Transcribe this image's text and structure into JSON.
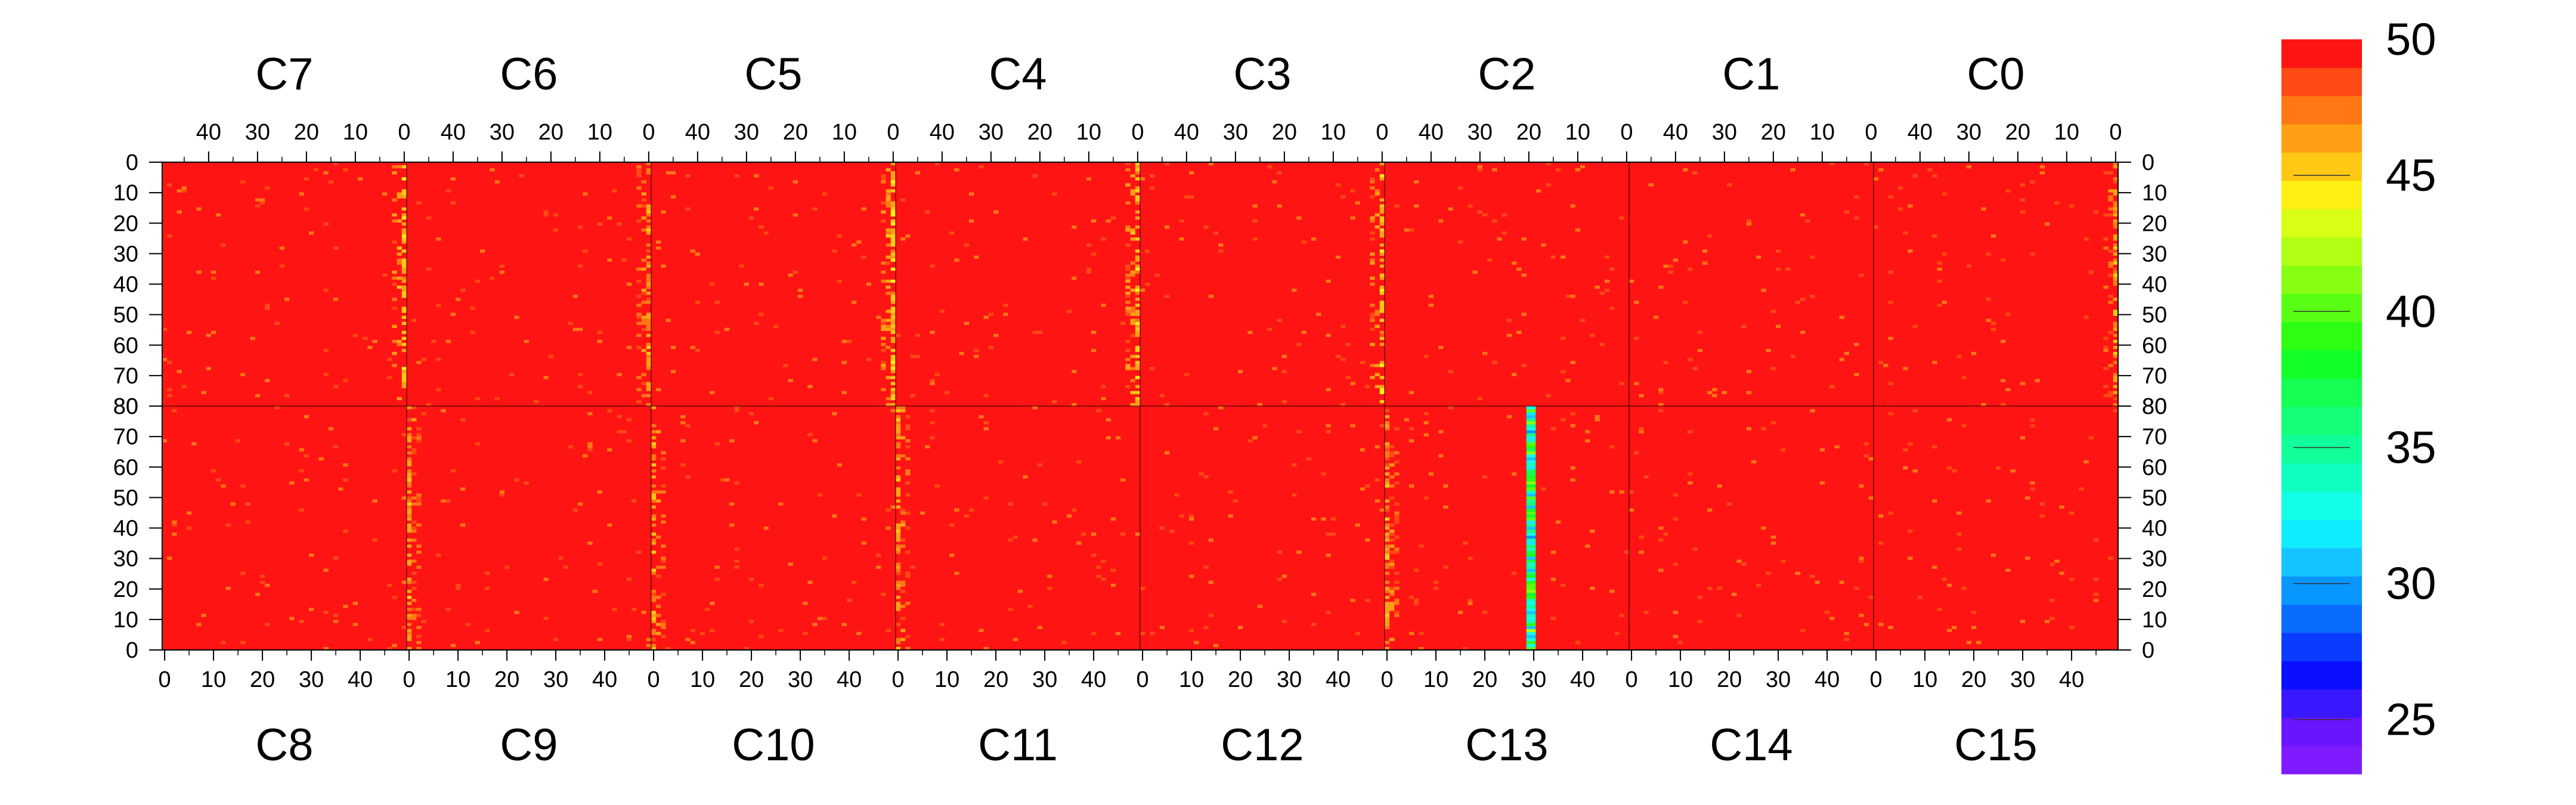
{
  "chart_data": {
    "type": "heatmap",
    "title": "",
    "xlabel": "",
    "ylabel": "",
    "z_range": [
      23,
      50
    ],
    "colorbar": {
      "labels": [
        25,
        30,
        35,
        40,
        45,
        50
      ],
      "colors": [
        "#7f1cff",
        "#6a14ff",
        "#3a18ff",
        "#0a10ff",
        "#0a3cff",
        "#0a6cff",
        "#0896ff",
        "#12c4ff",
        "#10ecff",
        "#10ffe6",
        "#10ffc0",
        "#10ff9a",
        "#14ff7a",
        "#14ff52",
        "#12ff2a",
        "#2cff14",
        "#58ff14",
        "#86ff14",
        "#b0ff14",
        "#d8ff14",
        "#fff014",
        "#ffc814",
        "#ffa014",
        "#ff7814",
        "#ff4a14",
        "#ff1414"
      ]
    },
    "top_row": {
      "panels": [
        "C7",
        "C6",
        "C5",
        "C4",
        "C3",
        "C2",
        "C1",
        "C0"
      ],
      "x_ticks": [
        "40",
        "30",
        "20",
        "10",
        "0"
      ],
      "x_tick_values": [
        40,
        30,
        20,
        10,
        0
      ],
      "y_ticks": [
        "0",
        "10",
        "20",
        "30",
        "40",
        "50",
        "60",
        "70",
        "80"
      ],
      "y_tick_values": [
        0,
        10,
        20,
        30,
        40,
        50,
        60,
        70,
        80
      ],
      "x_range": [
        49,
        0
      ],
      "y_range": [
        0,
        80
      ]
    },
    "bottom_row": {
      "panels": [
        "C8",
        "C9",
        "C10",
        "C11",
        "C12",
        "C13",
        "C14",
        "C15"
      ],
      "x_ticks": [
        "0",
        "10",
        "20",
        "30",
        "40"
      ],
      "x_tick_values": [
        0,
        10,
        20,
        30,
        40
      ],
      "y_ticks": [
        "80",
        "70",
        "60",
        "50",
        "40",
        "30",
        "20",
        "10",
        "0"
      ],
      "y_tick_values": [
        80,
        70,
        60,
        50,
        40,
        30,
        20,
        10,
        0
      ],
      "x_range": [
        0,
        49
      ],
      "y_range": [
        80,
        0
      ]
    },
    "background_value": 50,
    "hot_columns": [
      {
        "panel": "C7",
        "column": 0,
        "value": 47
      },
      {
        "panel": "C6",
        "column": 0,
        "value": 48
      },
      {
        "panel": "C5",
        "column": 0,
        "value": 47
      },
      {
        "panel": "C4",
        "column": 0,
        "value": 47
      },
      {
        "panel": "C3",
        "column": 0,
        "value": 47
      },
      {
        "panel": "C0",
        "column": 0,
        "value": 48
      },
      {
        "panel": "C9",
        "column": 0,
        "value": 48
      },
      {
        "panel": "C10",
        "column": 0,
        "value": 48
      },
      {
        "panel": "C11",
        "column": 0,
        "value": 48
      },
      {
        "panel": "C13",
        "column": 0,
        "value": 48
      }
    ],
    "anomaly": {
      "panel": "C13",
      "column": 29,
      "rows": [
        0,
        80
      ],
      "value": 36
    }
  }
}
